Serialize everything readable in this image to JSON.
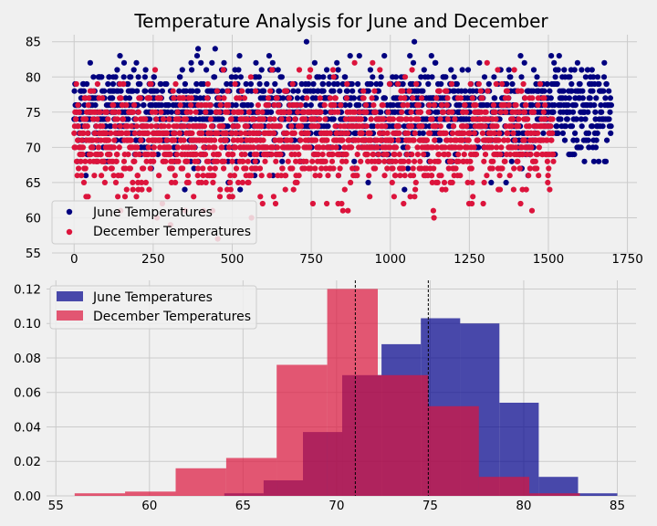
{
  "colors": {
    "background": "#f0f0f0",
    "grid": "#cbcbcb",
    "june": "#00007f",
    "december": "#dc143c",
    "june_hist": "#00008b",
    "december_hist": "#dc143c"
  },
  "chart_data": [
    {
      "type": "scatter",
      "title": "Temperature Analysis for June and December",
      "xlim": [
        -70,
        1780
      ],
      "ylim": [
        55,
        86
      ],
      "xticks": [
        0,
        250,
        500,
        750,
        1000,
        1250,
        1500,
        1750
      ],
      "yticks": [
        55,
        60,
        65,
        70,
        75,
        80,
        85
      ],
      "legend": {
        "placement": "lower-left"
      },
      "grid": true,
      "series": [
        {
          "name": "June Temperatures",
          "color": "#00007f",
          "n_points": 1700,
          "x_range": [
            0,
            1699
          ],
          "y_range": [
            64,
            85
          ],
          "y_approx_mean": 74.9,
          "y_approx_std": 3.3
        },
        {
          "name": "December Temperatures",
          "color": "#dc143c",
          "n_points": 1517,
          "x_range": [
            0,
            1516
          ],
          "y_range": [
            56,
            83
          ],
          "y_approx_mean": 71.0,
          "y_approx_std": 3.7
        }
      ]
    },
    {
      "type": "histogram",
      "xlim": [
        54.5,
        86
      ],
      "ylim": [
        0,
        0.125
      ],
      "xticks": [
        55,
        60,
        65,
        70,
        75,
        80,
        85
      ],
      "yticks": [
        0.0,
        0.02,
        0.04,
        0.06,
        0.08,
        0.1,
        0.12
      ],
      "legend": {
        "placement": "top-left"
      },
      "grid": true,
      "mean_lines": [
        71.0,
        74.9
      ],
      "series": [
        {
          "name": "June Temperatures",
          "color": "#00008b",
          "bin_edges": [
            64.0,
            66.1,
            68.2,
            70.3,
            72.4,
            74.5,
            76.6,
            78.7,
            80.8,
            82.9,
            85.0
          ],
          "densities": [
            0.0015,
            0.009,
            0.037,
            0.07,
            0.088,
            0.103,
            0.1,
            0.054,
            0.011,
            0.0015
          ]
        },
        {
          "name": "December Temperatures",
          "color": "#dc143c",
          "bin_edges": [
            56.0,
            58.7,
            61.4,
            64.1,
            66.8,
            69.5,
            72.2,
            74.9,
            77.6,
            80.3,
            83.0
          ],
          "densities": [
            0.0015,
            0.0025,
            0.016,
            0.022,
            0.076,
            0.12,
            0.07,
            0.052,
            0.011,
            0.0015
          ]
        }
      ]
    }
  ]
}
